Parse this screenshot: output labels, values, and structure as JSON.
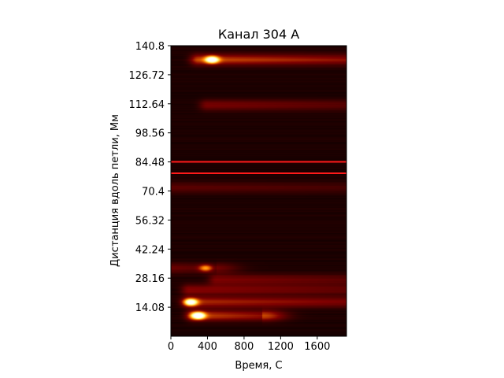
{
  "chart_data": {
    "type": "heatmap",
    "title": "Канал 304 A",
    "xlabel": "Время, С",
    "ylabel": "Дистанция вдоль петли, Мм",
    "xlim": [
      0,
      1920
    ],
    "ylim": [
      0,
      140.8
    ],
    "xticks": [
      0,
      400,
      800,
      1200,
      1600
    ],
    "xtick_labels": [
      "0",
      "400",
      "800",
      "1200",
      "1600"
    ],
    "yticks": [
      14.08,
      28.16,
      42.24,
      56.32,
      70.4,
      84.48,
      98.56,
      112.64,
      126.72,
      140.8
    ],
    "ytick_labels": [
      "14.08",
      "28.16",
      "42.24",
      "56.32",
      "70.4",
      "84.48",
      "98.56",
      "112.64",
      "126.72",
      "140.8"
    ],
    "colormap": "afmhot",
    "features": [
      {
        "kind": "hotspot",
        "x": 300,
        "y": 10.0,
        "intensity": 1.0
      },
      {
        "kind": "hotspot",
        "x": 220,
        "y": 16.5,
        "intensity": 0.85
      },
      {
        "kind": "hotspot",
        "x": 450,
        "y": 134.0,
        "intensity": 0.9
      },
      {
        "kind": "hotspot",
        "x": 380,
        "y": 33.0,
        "intensity": 0.4
      },
      {
        "kind": "band",
        "y": 10.0,
        "x_start": 250,
        "x_end": 1000,
        "intensity": 0.55
      },
      {
        "kind": "band",
        "y": 16.5,
        "x_start": 200,
        "x_end": 1920,
        "intensity": 0.45
      },
      {
        "kind": "band",
        "y": 22.5,
        "x_start": 200,
        "x_end": 1920,
        "intensity": 0.35
      },
      {
        "kind": "band",
        "y": 27.5,
        "x_start": 500,
        "x_end": 1920,
        "intensity": 0.3
      },
      {
        "kind": "band",
        "y": 33.0,
        "x_start": 0,
        "x_end": 500,
        "intensity": 0.25
      },
      {
        "kind": "band",
        "y": 72.0,
        "x_start": 0,
        "x_end": 1920,
        "intensity": 0.2
      },
      {
        "kind": "band",
        "y": 112.0,
        "x_start": 400,
        "x_end": 1920,
        "intensity": 0.3
      },
      {
        "kind": "band",
        "y": 134.0,
        "x_start": 300,
        "x_end": 1920,
        "intensity": 0.55
      }
    ],
    "hlines": [
      {
        "y": 84.5,
        "color": "#ff1a1a"
      },
      {
        "y": 79.0,
        "color": "#ff1a1a"
      }
    ]
  }
}
